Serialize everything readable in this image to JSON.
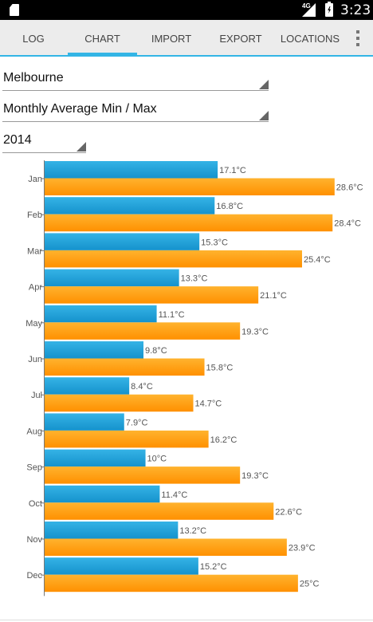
{
  "status_bar": {
    "network": "4G",
    "time": "3:23"
  },
  "tabs": [
    {
      "label": "LOG"
    },
    {
      "label": "CHART"
    },
    {
      "label": "IMPORT"
    },
    {
      "label": "EXPORT"
    },
    {
      "label": "LOCATIONS"
    }
  ],
  "selectors": {
    "location": "Melbourne",
    "chart_type": "Monthly Average Min / Max",
    "year": "2014"
  },
  "colors": {
    "accent": "#33b5e5",
    "min_bar": "#1fa0d6",
    "max_bar": "#ff9f10"
  },
  "chart_data": {
    "type": "bar",
    "orientation": "horizontal",
    "categories": [
      "Jan",
      "Feb",
      "Mar",
      "Apr",
      "May",
      "Jun",
      "Jul",
      "Aug",
      "Sep",
      "Oct",
      "Nov",
      "Dec"
    ],
    "series": [
      {
        "values": [
          17.1,
          16.8,
          15.3,
          13.3,
          11.1,
          9.8,
          8.4,
          7.9,
          10,
          11.4,
          13.2,
          15.2
        ],
        "labels": [
          "17.1°C",
          "16.8°C",
          "15.3°C",
          "13.3°C",
          "11.1°C",
          "9.8°C",
          "8.4°C",
          "7.9°C",
          "10°C",
          "11.4°C",
          "13.2°C",
          "15.2°C"
        ],
        "color": "#1fa0d6"
      },
      {
        "values": [
          28.6,
          28.4,
          25.4,
          21.1,
          19.3,
          15.8,
          14.7,
          16.2,
          19.3,
          22.6,
          23.9,
          25
        ],
        "labels": [
          "28.6°C",
          "28.4°C",
          "25.4°C",
          "21.1°C",
          "19.3°C",
          "15.8°C",
          "14.7°C",
          "16.2°C",
          "19.3°C",
          "22.6°C",
          "23.9°C",
          "25°C"
        ],
        "color": "#ff9f10"
      }
    ],
    "xlim": [
      0,
      32.3
    ],
    "title": "",
    "xlabel": "",
    "ylabel": "",
    "grid": false,
    "legend": "none"
  }
}
